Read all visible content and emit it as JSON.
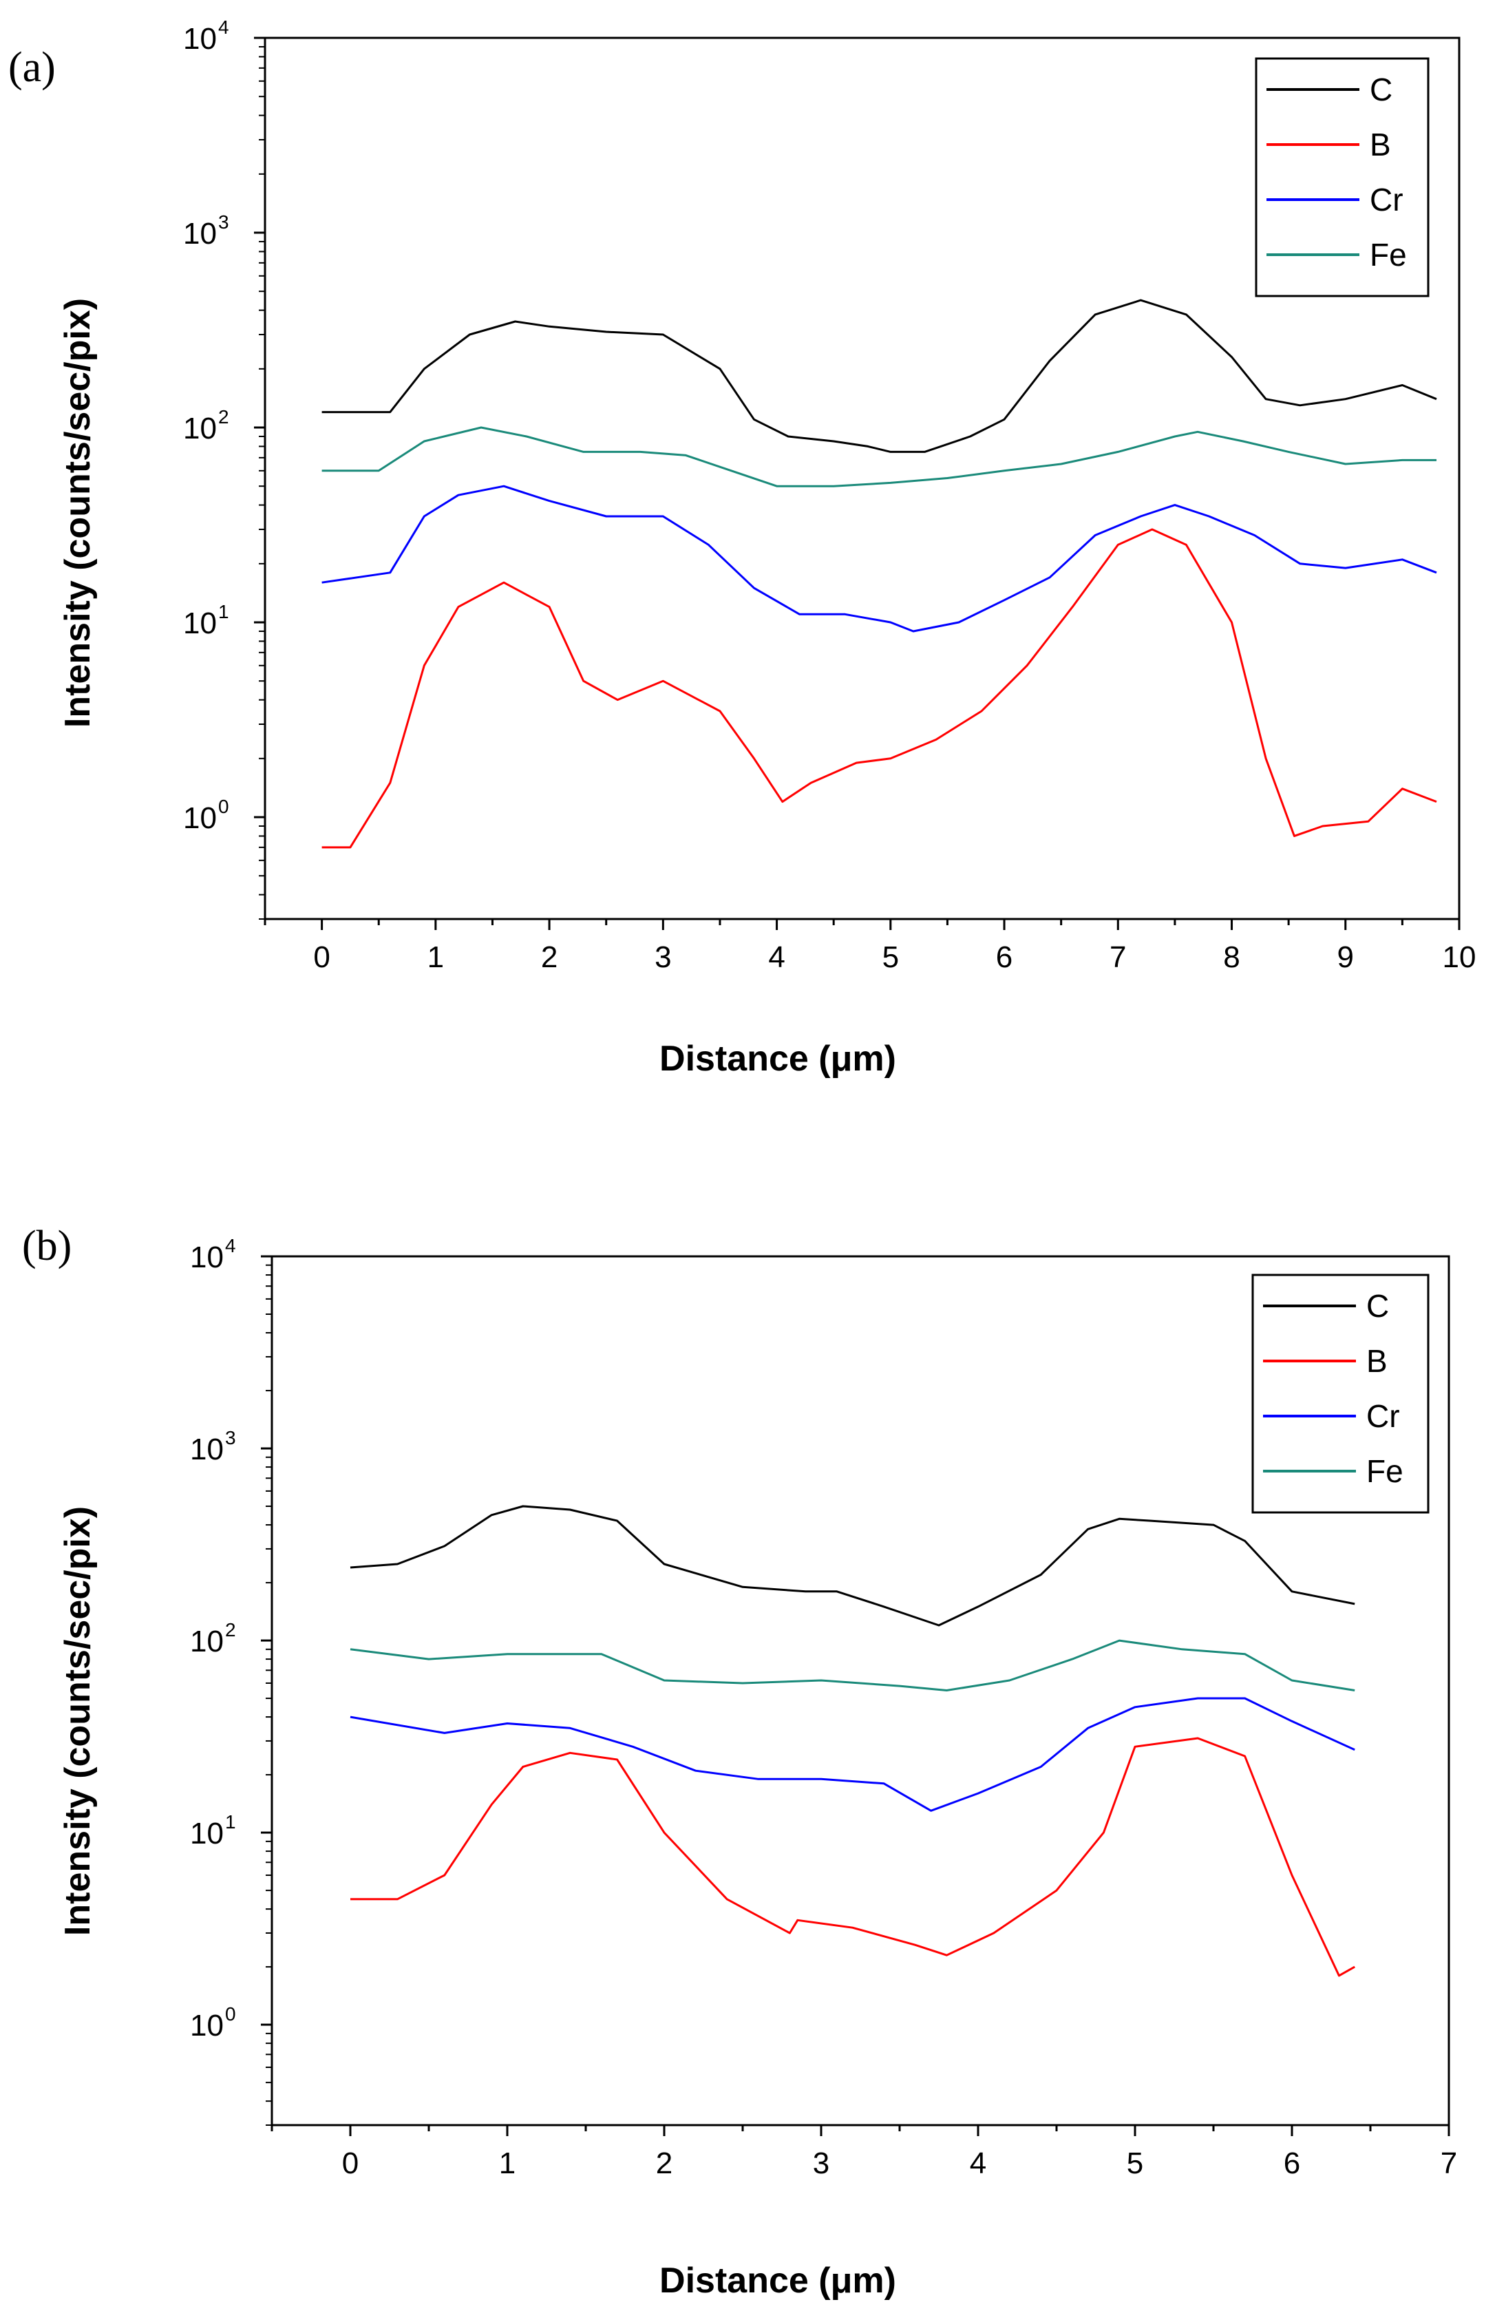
{
  "chart_data": [
    {
      "panel_label": "(a)",
      "type": "line",
      "xlabel": "Distance (μm)",
      "ylabel": "Intensity (counts/sec/pix)",
      "xlim": [
        -0.5,
        10
      ],
      "ylim": [
        0.3,
        10000
      ],
      "yscale": "log",
      "x_ticks": [
        0,
        1,
        2,
        3,
        4,
        5,
        6,
        7,
        8,
        9,
        10
      ],
      "x_tick_labels": [
        "0",
        "1",
        "2",
        "3",
        "4",
        "5",
        "6",
        "7",
        "8",
        "9",
        "10"
      ],
      "y_ticks": [
        1,
        10,
        100,
        1000,
        10000
      ],
      "y_tick_labels": [
        {
          "base": "10",
          "exp": "0"
        },
        {
          "base": "10",
          "exp": "1"
        },
        {
          "base": "10",
          "exp": "2"
        },
        {
          "base": "10",
          "exp": "3"
        },
        {
          "base": "10",
          "exp": "4"
        }
      ],
      "legend_position": "top-right",
      "series": [
        {
          "name": "C",
          "color": "#000000",
          "x": [
            0,
            0.25,
            0.6,
            0.9,
            1.3,
            1.7,
            2.0,
            2.5,
            3.0,
            3.5,
            3.8,
            4.1,
            4.5,
            4.8,
            5.0,
            5.3,
            5.7,
            6.0,
            6.4,
            6.8,
            7.2,
            7.6,
            8.0,
            8.3,
            8.6,
            9.0,
            9.5,
            9.8
          ],
          "values": [
            120,
            120,
            120,
            200,
            300,
            350,
            330,
            310,
            300,
            200,
            110,
            90,
            85,
            80,
            75,
            75,
            90,
            110,
            220,
            380,
            450,
            380,
            230,
            140,
            130,
            140,
            165,
            140
          ]
        },
        {
          "name": "B",
          "color": "#ff0000",
          "x": [
            0,
            0.25,
            0.6,
            0.9,
            1.2,
            1.6,
            2.0,
            2.3,
            2.6,
            3.0,
            3.5,
            3.8,
            4.05,
            4.3,
            4.7,
            5.0,
            5.4,
            5.8,
            6.2,
            6.6,
            7.0,
            7.3,
            7.6,
            8.0,
            8.3,
            8.55,
            8.8,
            9.2,
            9.5,
            9.8
          ],
          "values": [
            0.7,
            0.7,
            1.5,
            6,
            12,
            16,
            12,
            5,
            4,
            5,
            3.5,
            2,
            1.2,
            1.5,
            1.9,
            2,
            2.5,
            3.5,
            6,
            12,
            25,
            30,
            25,
            10,
            2,
            0.8,
            0.9,
            0.95,
            1.4,
            1.2
          ]
        },
        {
          "name": "Cr",
          "color": "#0000ff",
          "x": [
            0,
            0.6,
            0.9,
            1.2,
            1.6,
            2.0,
            2.5,
            3.0,
            3.4,
            3.8,
            4.2,
            4.6,
            5.0,
            5.2,
            5.6,
            6.0,
            6.4,
            6.8,
            7.2,
            7.5,
            7.8,
            8.2,
            8.6,
            9.0,
            9.5,
            9.8
          ],
          "values": [
            16,
            18,
            35,
            45,
            50,
            42,
            35,
            35,
            25,
            15,
            11,
            11,
            10,
            9,
            10,
            13,
            17,
            28,
            35,
            40,
            35,
            28,
            20,
            19,
            21,
            18
          ]
        },
        {
          "name": "Fe",
          "color": "#1a8a7a",
          "x": [
            0,
            0.5,
            0.9,
            1.4,
            1.8,
            2.3,
            2.8,
            3.2,
            3.6,
            4.0,
            4.5,
            5.0,
            5.5,
            6.0,
            6.5,
            7.0,
            7.5,
            7.7,
            8.1,
            8.5,
            9.0,
            9.5,
            9.8
          ],
          "values": [
            60,
            60,
            85,
            100,
            90,
            75,
            75,
            72,
            60,
            50,
            50,
            52,
            55,
            60,
            65,
            75,
            90,
            95,
            85,
            75,
            65,
            68,
            68
          ]
        }
      ]
    },
    {
      "panel_label": "(b)",
      "type": "line",
      "xlabel": "Distance (μm)",
      "ylabel": "Intensity (counts/sec/pix)",
      "xlim": [
        -0.5,
        7
      ],
      "ylim": [
        0.3,
        10000
      ],
      "yscale": "log",
      "x_ticks": [
        0,
        1,
        2,
        3,
        4,
        5,
        6,
        7
      ],
      "x_tick_labels": [
        "0",
        "1",
        "2",
        "3",
        "4",
        "5",
        "6",
        "7"
      ],
      "y_ticks": [
        1,
        10,
        100,
        1000,
        10000
      ],
      "y_tick_labels": [
        {
          "base": "10",
          "exp": "0"
        },
        {
          "base": "10",
          "exp": "1"
        },
        {
          "base": "10",
          "exp": "2"
        },
        {
          "base": "10",
          "exp": "3"
        },
        {
          "base": "10",
          "exp": "4"
        }
      ],
      "legend_position": "top-right",
      "series": [
        {
          "name": "C",
          "color": "#000000",
          "x": [
            0,
            0.3,
            0.6,
            0.9,
            1.1,
            1.4,
            1.7,
            2.0,
            2.5,
            2.9,
            3.1,
            3.4,
            3.75,
            4.0,
            4.4,
            4.7,
            4.9,
            5.1,
            5.5,
            5.7,
            6.0,
            6.4
          ],
          "values": [
            240,
            250,
            310,
            450,
            500,
            480,
            420,
            250,
            190,
            180,
            180,
            150,
            120,
            150,
            220,
            380,
            430,
            420,
            400,
            330,
            180,
            155
          ]
        },
        {
          "name": "B",
          "color": "#ff0000",
          "x": [
            0,
            0.3,
            0.6,
            0.9,
            1.1,
            1.4,
            1.7,
            2.0,
            2.4,
            2.8,
            2.85,
            3.2,
            3.6,
            3.8,
            4.1,
            4.5,
            4.8,
            5.0,
            5.4,
            5.7,
            6.0,
            6.3,
            6.4
          ],
          "values": [
            4.5,
            4.5,
            6,
            14,
            22,
            26,
            24,
            10,
            4.5,
            3,
            3.5,
            3.2,
            2.6,
            2.3,
            3,
            5,
            10,
            28,
            31,
            25,
            6,
            1.8,
            2
          ]
        },
        {
          "name": "Cr",
          "color": "#0000ff",
          "x": [
            0,
            0.6,
            1.0,
            1.4,
            1.8,
            2.2,
            2.6,
            3.0,
            3.4,
            3.7,
            4.0,
            4.4,
            4.7,
            5.0,
            5.4,
            5.7,
            6.0,
            6.4
          ],
          "values": [
            40,
            33,
            37,
            35,
            28,
            21,
            19,
            19,
            18,
            13,
            16,
            22,
            35,
            45,
            50,
            50,
            38,
            27
          ]
        },
        {
          "name": "Fe",
          "color": "#1a8a7a",
          "x": [
            0,
            0.5,
            1.0,
            1.6,
            2.0,
            2.5,
            3.0,
            3.5,
            3.8,
            4.2,
            4.6,
            4.9,
            5.3,
            5.7,
            6.0,
            6.4
          ],
          "values": [
            90,
            80,
            85,
            85,
            62,
            60,
            62,
            58,
            55,
            62,
            80,
            100,
            90,
            85,
            62,
            55
          ]
        }
      ]
    }
  ]
}
